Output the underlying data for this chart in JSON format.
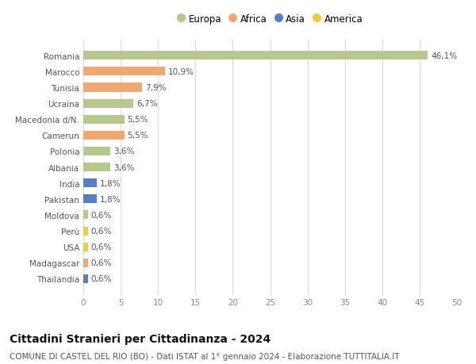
{
  "countries": [
    "Romania",
    "Marocco",
    "Tunisia",
    "Ucraina",
    "Macedonia d/N.",
    "Camerun",
    "Polonia",
    "Albania",
    "India",
    "Pakistan",
    "Moldova",
    "Perù",
    "USA",
    "Madagascar",
    "Thailandia"
  ],
  "values": [
    46.1,
    10.9,
    7.9,
    6.7,
    5.5,
    5.5,
    3.6,
    3.6,
    1.8,
    1.8,
    0.6,
    0.6,
    0.6,
    0.6,
    0.6
  ],
  "labels": [
    "46,1%",
    "10,9%",
    "7,9%",
    "6,7%",
    "5,5%",
    "5,5%",
    "3,6%",
    "3,6%",
    "1,8%",
    "1,8%",
    "0,6%",
    "0,6%",
    "0,6%",
    "0,6%",
    "0,6%"
  ],
  "continents": [
    "Europa",
    "Africa",
    "Africa",
    "Europa",
    "Europa",
    "Africa",
    "Europa",
    "Europa",
    "Asia",
    "Asia",
    "Europa",
    "America",
    "America",
    "Africa",
    "Asia"
  ],
  "continent_colors": {
    "Europa": "#b5c98e",
    "Africa": "#f0a870",
    "Asia": "#5b7cbf",
    "America": "#f5c842"
  },
  "legend_order": [
    "Europa",
    "Africa",
    "Asia",
    "America"
  ],
  "title": "Cittadini Stranieri per Cittadinanza - 2024",
  "subtitle": "COMUNE DI CASTEL DEL RIO (BO) - Dati ISTAT al 1° gennaio 2024 - Elaborazione TUTTITALIA.IT",
  "xlim": [
    0,
    50
  ],
  "xticks": [
    0,
    5,
    10,
    15,
    20,
    25,
    30,
    35,
    40,
    45,
    50
  ],
  "background_color": "#ffffff",
  "grid_color": "#d8d8d8",
  "bar_height": 0.55,
  "title_fontsize": 10,
  "subtitle_fontsize": 7.5,
  "label_fontsize": 7.5,
  "tick_fontsize": 7.5,
  "legend_fontsize": 8.5
}
